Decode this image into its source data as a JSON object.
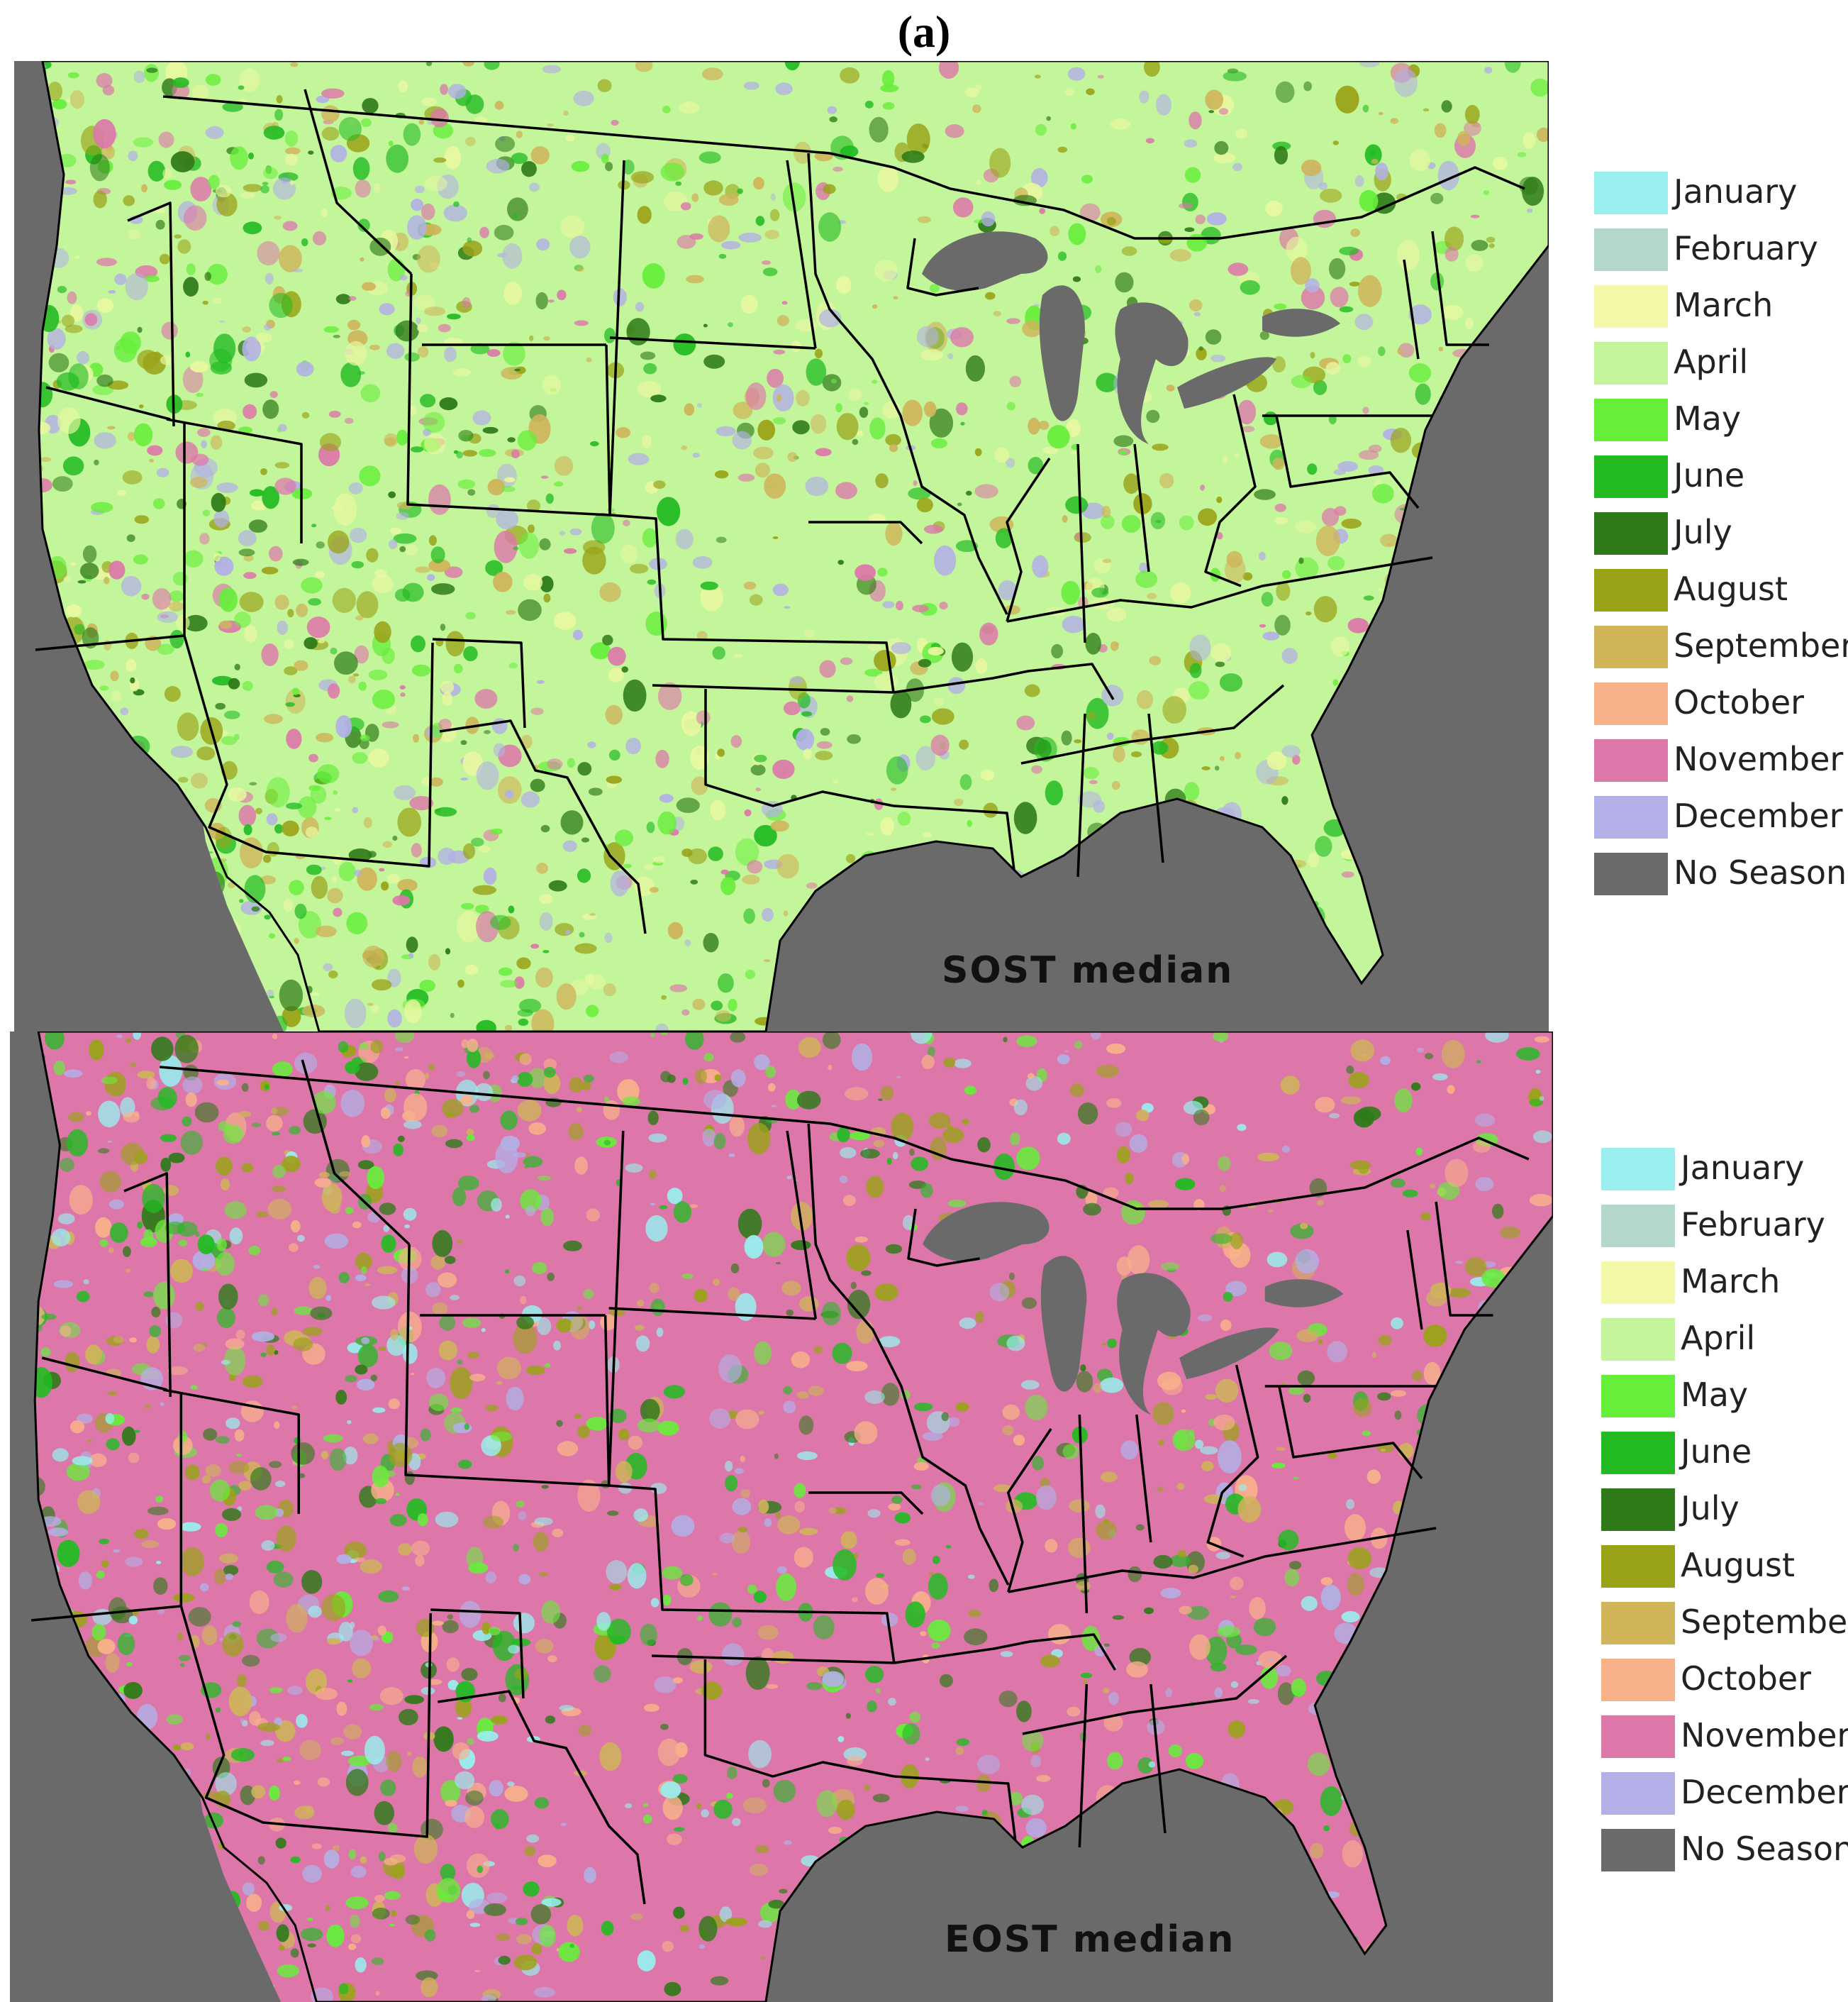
{
  "figure": {
    "panel_label": "(a)"
  },
  "maps": [
    {
      "caption": "SOST median",
      "base_color": "#c3f59a",
      "patch_colors": [
        "#66ee3a",
        "#22bb22",
        "#e8f8a0",
        "#b2b0e6",
        "#dd77aa",
        "#cfb45a",
        "#9aa318",
        "#2e7a18"
      ]
    },
    {
      "caption": "EOST median",
      "base_color": "#dd77aa",
      "patch_colors": [
        "#b2b0e6",
        "#99eeee",
        "#f8b28a",
        "#cfb45a",
        "#9aa318",
        "#22bb22",
        "#66ee3a",
        "#2e7a18"
      ]
    }
  ],
  "legend": {
    "items": [
      {
        "label": "January",
        "color": "#99eeee"
      },
      {
        "label": "February",
        "color": "#b2d9cc"
      },
      {
        "label": "March",
        "color": "#f4f9a8"
      },
      {
        "label": "April",
        "color": "#c3f59a"
      },
      {
        "label": "May",
        "color": "#66ee3a"
      },
      {
        "label": "June",
        "color": "#22bb22"
      },
      {
        "label": "July",
        "color": "#2e7a18"
      },
      {
        "label": "August",
        "color": "#9aa318"
      },
      {
        "label": "September",
        "color": "#cfb45a"
      },
      {
        "label": "October",
        "color": "#f8b28a"
      },
      {
        "label": "November",
        "color": "#dd77aa"
      },
      {
        "label": "December",
        "color": "#b2b0e6"
      },
      {
        "label": "No Season",
        "color": "#6a6a6a"
      }
    ]
  },
  "colors": {
    "water": "#6a6a6a",
    "border": "#000000"
  }
}
